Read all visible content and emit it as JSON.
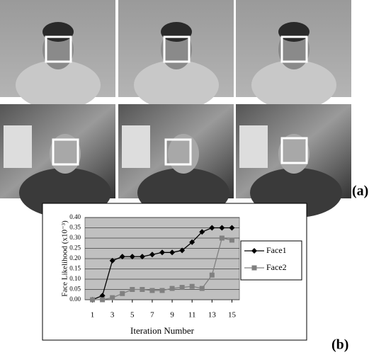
{
  "figure": {
    "panel_a_label": "(a)",
    "panel_b_label": "(b)"
  },
  "chart_data": {
    "type": "line",
    "x": [
      1,
      2,
      3,
      4,
      5,
      6,
      7,
      8,
      9,
      10,
      11,
      12,
      13,
      14,
      15
    ],
    "xlim": [
      0.25,
      15.75
    ],
    "xticks": [
      1,
      3,
      5,
      7,
      9,
      11,
      13,
      15
    ],
    "ylim": [
      0,
      0.4
    ],
    "yticks": [
      {
        "value": 0,
        "label": "0.00"
      },
      0.05,
      {
        "value": 0.1,
        "label": "0.10"
      },
      0.15,
      {
        "value": 0.2,
        "label": "0.20"
      },
      0.25,
      {
        "value": 0.3,
        "label": "0.30"
      },
      0.35,
      {
        "value": 0.4,
        "label": "0.40"
      }
    ],
    "xlabel": "Iteration Number",
    "ylabel": "Face Likelihood (x10⁻³)",
    "grid": true,
    "legend": "right",
    "series": [
      {
        "name": "Face1",
        "color": "#000000",
        "marker": "diamond",
        "values": [
          0.0,
          0.02,
          0.19,
          0.21,
          0.21,
          0.21,
          0.22,
          0.23,
          0.23,
          0.24,
          0.28,
          0.33,
          0.35,
          0.35,
          0.35
        ]
      },
      {
        "name": "Face2",
        "color": "#808080",
        "marker": "square",
        "values": [
          0.0,
          0.0,
          0.01,
          0.03,
          0.05,
          0.05,
          0.045,
          0.045,
          0.055,
          0.06,
          0.065,
          0.055,
          0.12,
          0.3,
          0.29
        ]
      }
    ]
  }
}
